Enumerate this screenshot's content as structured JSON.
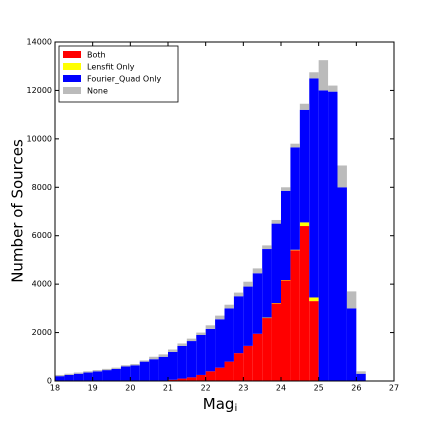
{
  "chart_data": {
    "type": "histogram",
    "xlabel": {
      "text": "Mag",
      "subscript": "i"
    },
    "ylabel": "Number of Sources",
    "bins": [
      18.0,
      18.25,
      18.5,
      18.75,
      19.0,
      19.25,
      19.5,
      19.75,
      20.0,
      20.25,
      20.5,
      20.75,
      21.0,
      21.25,
      21.5,
      21.75,
      22.0,
      22.25,
      22.5,
      22.75,
      23.0,
      23.25,
      23.5,
      23.75,
      24.0,
      24.25,
      24.5,
      24.75,
      25.0,
      25.25,
      25.5,
      25.75,
      26.0,
      26.25
    ],
    "stacked": true,
    "series": [
      {
        "name": "Both",
        "color": "#ff0000",
        "values": [
          0,
          0,
          0,
          0,
          0,
          0,
          0,
          0,
          0,
          0,
          0,
          20,
          50,
          100,
          150,
          250,
          400,
          550,
          800,
          1150,
          1450,
          1950,
          2600,
          3200,
          4150,
          5400,
          6400,
          3300,
          0,
          0,
          0,
          0,
          0
        ]
      },
      {
        "name": "Lensfit Only",
        "color": "#ffff00",
        "values": [
          0,
          0,
          0,
          0,
          0,
          0,
          0,
          0,
          0,
          0,
          0,
          0,
          0,
          0,
          0,
          0,
          0,
          0,
          0,
          0,
          0,
          0,
          20,
          20,
          20,
          20,
          150,
          150,
          0,
          0,
          0,
          0,
          0
        ]
      },
      {
        "name": "Fourier_Quad Only",
        "color": "#0000ff",
        "values": [
          200,
          250,
          300,
          350,
          400,
          450,
          500,
          600,
          650,
          800,
          900,
          980,
          1150,
          1350,
          1500,
          1650,
          1750,
          2000,
          2200,
          2350,
          2450,
          2500,
          2830,
          3280,
          3680,
          4230,
          4650,
          9050,
          12000,
          11950,
          8000,
          3000,
          300
        ]
      },
      {
        "name": "None",
        "color": "#bbbbbb",
        "values": [
          50,
          50,
          50,
          50,
          50,
          50,
          50,
          50,
          50,
          50,
          100,
          100,
          100,
          100,
          100,
          100,
          150,
          150,
          150,
          150,
          200,
          200,
          150,
          150,
          150,
          150,
          250,
          250,
          1250,
          250,
          900,
          700,
          100
        ]
      }
    ],
    "xlim": [
      18,
      27
    ],
    "xticks": [
      18,
      19,
      20,
      21,
      22,
      23,
      24,
      25,
      26,
      27
    ],
    "ylim": [
      0,
      14000
    ],
    "yticks": [
      0,
      2000,
      4000,
      6000,
      8000,
      10000,
      12000,
      14000
    ],
    "legend": "upper left"
  }
}
